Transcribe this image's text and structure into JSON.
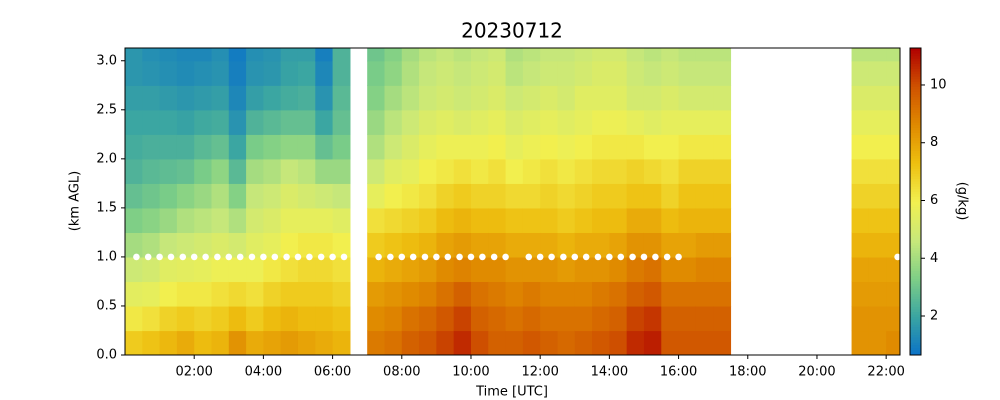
{
  "chart_data": {
    "type": "heatmap",
    "title": "20230712",
    "x_label": "Time [UTC]",
    "y_label": "(km AGL)",
    "colorbar_label": "(g/kg)",
    "xlim": [
      0,
      22.4
    ],
    "ylim": [
      0,
      3.13
    ],
    "clim": [
      0.65,
      11.28
    ],
    "xticks": [
      {
        "value": 2,
        "label": "02:00"
      },
      {
        "value": 4,
        "label": "04:00"
      },
      {
        "value": 6,
        "label": "06:00"
      },
      {
        "value": 8,
        "label": "08:00"
      },
      {
        "value": 10,
        "label": "10:00"
      },
      {
        "value": 12,
        "label": "12:00"
      },
      {
        "value": 14,
        "label": "14:00"
      },
      {
        "value": 16,
        "label": "16:00"
      },
      {
        "value": 18,
        "label": "18:00"
      },
      {
        "value": 20,
        "label": "20:00"
      },
      {
        "value": 22,
        "label": "22:00"
      }
    ],
    "yticks": [
      {
        "value": 0,
        "label": "0.0"
      },
      0.5,
      {
        "value": 1,
        "label": "1.0"
      },
      1.5,
      {
        "value": 2,
        "label": "2.0"
      },
      2.5,
      {
        "value": 3,
        "label": "3.0"
      }
    ],
    "cticks": [
      2,
      4,
      6,
      8,
      10
    ],
    "colormap": [
      "#0a72c8",
      "#3aa5a2",
      "#7fcf86",
      "#c8e87a",
      "#f2f050",
      "#eec010",
      "#e08a00",
      "#cf5200",
      "#b00000"
    ],
    "x": [
      0,
      0.5,
      1,
      1.5,
      2,
      2.5,
      3,
      3.5,
      4,
      4.5,
      5,
      5.5,
      6,
      6.5,
      7,
      7.5,
      8,
      8.5,
      9,
      9.5,
      10,
      10.5,
      11,
      11.5,
      12,
      12.5,
      13,
      13.5,
      14,
      14.5,
      15,
      15.5,
      16,
      16.5,
      17,
      17.5,
      18,
      18.5,
      19,
      19.5,
      20,
      20.5,
      21,
      21.5,
      22
    ],
    "y": [
      0,
      0.25,
      0.5,
      0.75,
      1,
      1.25,
      1.5,
      1.75,
      2,
      2.25,
      2.5,
      2.75,
      3
    ],
    "z": [
      [
        7.0,
        6.2,
        5.5,
        4.8,
        4.0,
        3.3,
        2.8,
        2.4,
        2.2,
        2.0,
        1.8,
        1.6,
        1.6
      ],
      [
        7.2,
        6.4,
        5.6,
        5.0,
        4.2,
        3.5,
        3.0,
        2.6,
        2.3,
        2.0,
        1.8,
        1.5,
        1.4
      ],
      [
        7.5,
        6.8,
        6.0,
        5.4,
        4.6,
        3.8,
        3.2,
        2.7,
        2.3,
        2.0,
        1.7,
        1.4,
        1.3
      ],
      [
        7.8,
        7.0,
        6.2,
        5.5,
        4.8,
        4.2,
        3.5,
        2.8,
        2.3,
        1.9,
        1.6,
        1.3,
        1.2
      ],
      [
        7.4,
        6.8,
        6.2,
        5.6,
        5.0,
        4.4,
        3.8,
        3.2,
        2.6,
        2.1,
        1.7,
        1.4,
        1.2
      ],
      [
        7.6,
        7.0,
        6.4,
        5.8,
        5.2,
        4.6,
        4.2,
        3.6,
        2.8,
        2.2,
        1.8,
        1.5,
        1.4
      ],
      [
        8.4,
        7.4,
        6.6,
        5.8,
        5.0,
        4.2,
        3.4,
        2.6,
        2.0,
        1.5,
        1.2,
        1.0,
        0.9
      ],
      [
        7.8,
        7.0,
        6.4,
        5.8,
        5.4,
        5.0,
        4.6,
        4.0,
        3.2,
        2.4,
        1.8,
        1.5,
        1.4
      ],
      [
        8.0,
        7.4,
        6.8,
        6.2,
        5.6,
        5.2,
        4.8,
        4.2,
        3.4,
        2.6,
        2.0,
        1.6,
        1.5
      ],
      [
        8.2,
        7.6,
        7.0,
        6.4,
        6.0,
        5.6,
        5.2,
        4.6,
        3.6,
        2.8,
        2.2,
        1.9,
        1.8
      ],
      [
        8.0,
        7.4,
        7.0,
        6.6,
        6.2,
        5.6,
        5.0,
        4.4,
        3.6,
        2.8,
        2.3,
        2.0,
        1.8
      ],
      [
        7.8,
        7.4,
        7.0,
        6.6,
        6.2,
        5.6,
        4.8,
        3.8,
        2.8,
        2.0,
        1.5,
        1.2,
        1.0
      ],
      [
        7.6,
        7.2,
        6.8,
        6.4,
        6.0,
        5.4,
        4.6,
        3.8,
        3.2,
        2.8,
        2.6,
        2.4,
        2.4
      ],
      null,
      [
        9.0,
        8.6,
        8.2,
        7.6,
        7.0,
        6.4,
        5.6,
        4.8,
        4.2,
        3.8,
        3.4,
        3.2,
        3.0
      ],
      [
        9.2,
        8.8,
        8.4,
        7.8,
        7.2,
        6.6,
        6.0,
        5.4,
        4.8,
        4.4,
        4.0,
        3.6,
        3.4
      ],
      [
        9.6,
        9.2,
        8.6,
        8.0,
        7.4,
        6.8,
        6.2,
        5.6,
        5.2,
        4.8,
        4.4,
        4.2,
        4.0
      ],
      [
        9.8,
        9.4,
        8.8,
        8.2,
        7.6,
        7.0,
        6.4,
        6.0,
        5.6,
        5.2,
        4.8,
        4.6,
        4.4
      ],
      [
        10.2,
        9.8,
        9.2,
        8.6,
        8.0,
        7.4,
        6.8,
        6.2,
        5.8,
        5.4,
        5.0,
        4.8,
        4.6
      ],
      [
        10.6,
        10.2,
        9.6,
        8.8,
        8.2,
        7.6,
        7.0,
        6.4,
        5.8,
        5.2,
        4.8,
        4.6,
        4.4
      ],
      [
        10.0,
        9.6,
        9.2,
        8.6,
        8.0,
        7.4,
        6.8,
        6.2,
        5.8,
        5.4,
        5.0,
        4.8,
        4.6
      ],
      [
        9.6,
        9.4,
        9.0,
        8.6,
        8.0,
        7.4,
        6.8,
        6.4,
        6.0,
        5.6,
        5.2,
        5.0,
        4.8
      ],
      [
        9.6,
        9.2,
        8.8,
        8.4,
        7.8,
        7.2,
        6.6,
        6.0,
        5.6,
        5.2,
        4.8,
        4.4,
        4.2
      ],
      [
        9.8,
        9.4,
        9.0,
        8.4,
        7.8,
        7.2,
        6.6,
        6.2,
        5.8,
        5.4,
        5.0,
        4.6,
        4.4
      ],
      [
        9.6,
        9.2,
        8.8,
        8.4,
        7.8,
        7.2,
        6.8,
        6.4,
        6.0,
        5.6,
        5.2,
        4.8,
        4.6
      ],
      [
        9.4,
        9.2,
        8.8,
        8.2,
        7.6,
        7.0,
        6.6,
        6.2,
        5.8,
        5.4,
        5.0,
        4.8,
        4.6
      ],
      [
        9.6,
        9.2,
        8.8,
        8.4,
        7.8,
        7.2,
        6.8,
        6.4,
        6.0,
        5.6,
        5.4,
        5.0,
        4.8
      ],
      [
        9.8,
        9.4,
        9.0,
        8.4,
        7.8,
        7.4,
        7.0,
        6.6,
        6.2,
        5.8,
        5.4,
        5.2,
        5.0
      ],
      [
        10.0,
        9.6,
        9.2,
        8.6,
        8.0,
        7.4,
        7.0,
        6.6,
        6.2,
        5.8,
        5.4,
        5.2,
        5.0
      ],
      [
        10.6,
        10.2,
        9.6,
        9.0,
        8.4,
        7.8,
        7.2,
        6.8,
        6.2,
        5.6,
        5.0,
        4.8,
        4.6
      ],
      [
        10.8,
        10.4,
        9.8,
        9.2,
        8.4,
        7.8,
        7.2,
        6.6,
        6.0,
        5.4,
        5.0,
        4.6,
        4.4
      ],
      [
        9.8,
        9.6,
        9.2,
        8.6,
        8.0,
        7.4,
        6.8,
        6.4,
        6.0,
        5.6,
        5.2,
        4.8,
        4.6
      ],
      [
        9.8,
        9.6,
        9.2,
        8.6,
        8.0,
        7.6,
        7.2,
        6.8,
        6.2,
        5.6,
        5.0,
        4.6,
        4.4
      ],
      [
        9.8,
        9.6,
        9.2,
        8.8,
        8.2,
        7.6,
        7.2,
        6.8,
        6.2,
        5.6,
        5.0,
        4.6,
        4.4
      ],
      [
        9.8,
        9.6,
        9.2,
        8.8,
        8.2,
        7.6,
        7.2,
        6.8,
        6.2,
        5.6,
        5.0,
        4.6,
        4.4
      ],
      null,
      null,
      null,
      null,
      null,
      null,
      null,
      [
        8.4,
        8.4,
        8.2,
        8.0,
        7.6,
        7.2,
        6.8,
        6.4,
        6.0,
        5.6,
        5.2,
        4.8,
        4.4
      ],
      [
        8.4,
        8.4,
        8.2,
        8.0,
        7.6,
        7.2,
        6.8,
        6.4,
        6.0,
        5.6,
        5.2,
        4.8,
        4.4
      ],
      [
        8.6,
        8.4,
        8.2,
        8.0,
        7.6,
        7.2,
        6.8,
        6.4,
        6.0,
        5.6,
        5.2,
        4.8,
        4.4
      ]
    ],
    "points": {
      "color": "#ffffff",
      "x": [
        0.33,
        0.67,
        1.0,
        1.33,
        1.67,
        2.0,
        2.33,
        2.67,
        3.0,
        3.33,
        3.67,
        4.0,
        4.33,
        4.67,
        5.0,
        5.33,
        5.67,
        6.0,
        6.33,
        7.33,
        7.67,
        8.0,
        8.33,
        8.67,
        9.0,
        9.33,
        9.67,
        10.0,
        10.33,
        10.67,
        11.0,
        11.67,
        12.0,
        12.33,
        12.67,
        13.0,
        13.33,
        13.67,
        14.0,
        14.33,
        14.67,
        15.0,
        15.33,
        15.67,
        16.0,
        22.33
      ],
      "y": [
        1,
        1,
        1,
        1,
        1,
        1,
        1,
        1,
        1,
        1,
        1,
        1,
        1,
        1,
        1,
        1,
        1,
        1,
        1,
        1,
        1,
        1,
        1,
        1,
        1,
        1,
        1,
        1,
        1,
        1,
        1,
        1,
        1,
        1,
        1,
        1,
        1,
        1,
        1,
        1,
        1,
        1,
        1,
        1,
        1,
        1
      ]
    }
  }
}
